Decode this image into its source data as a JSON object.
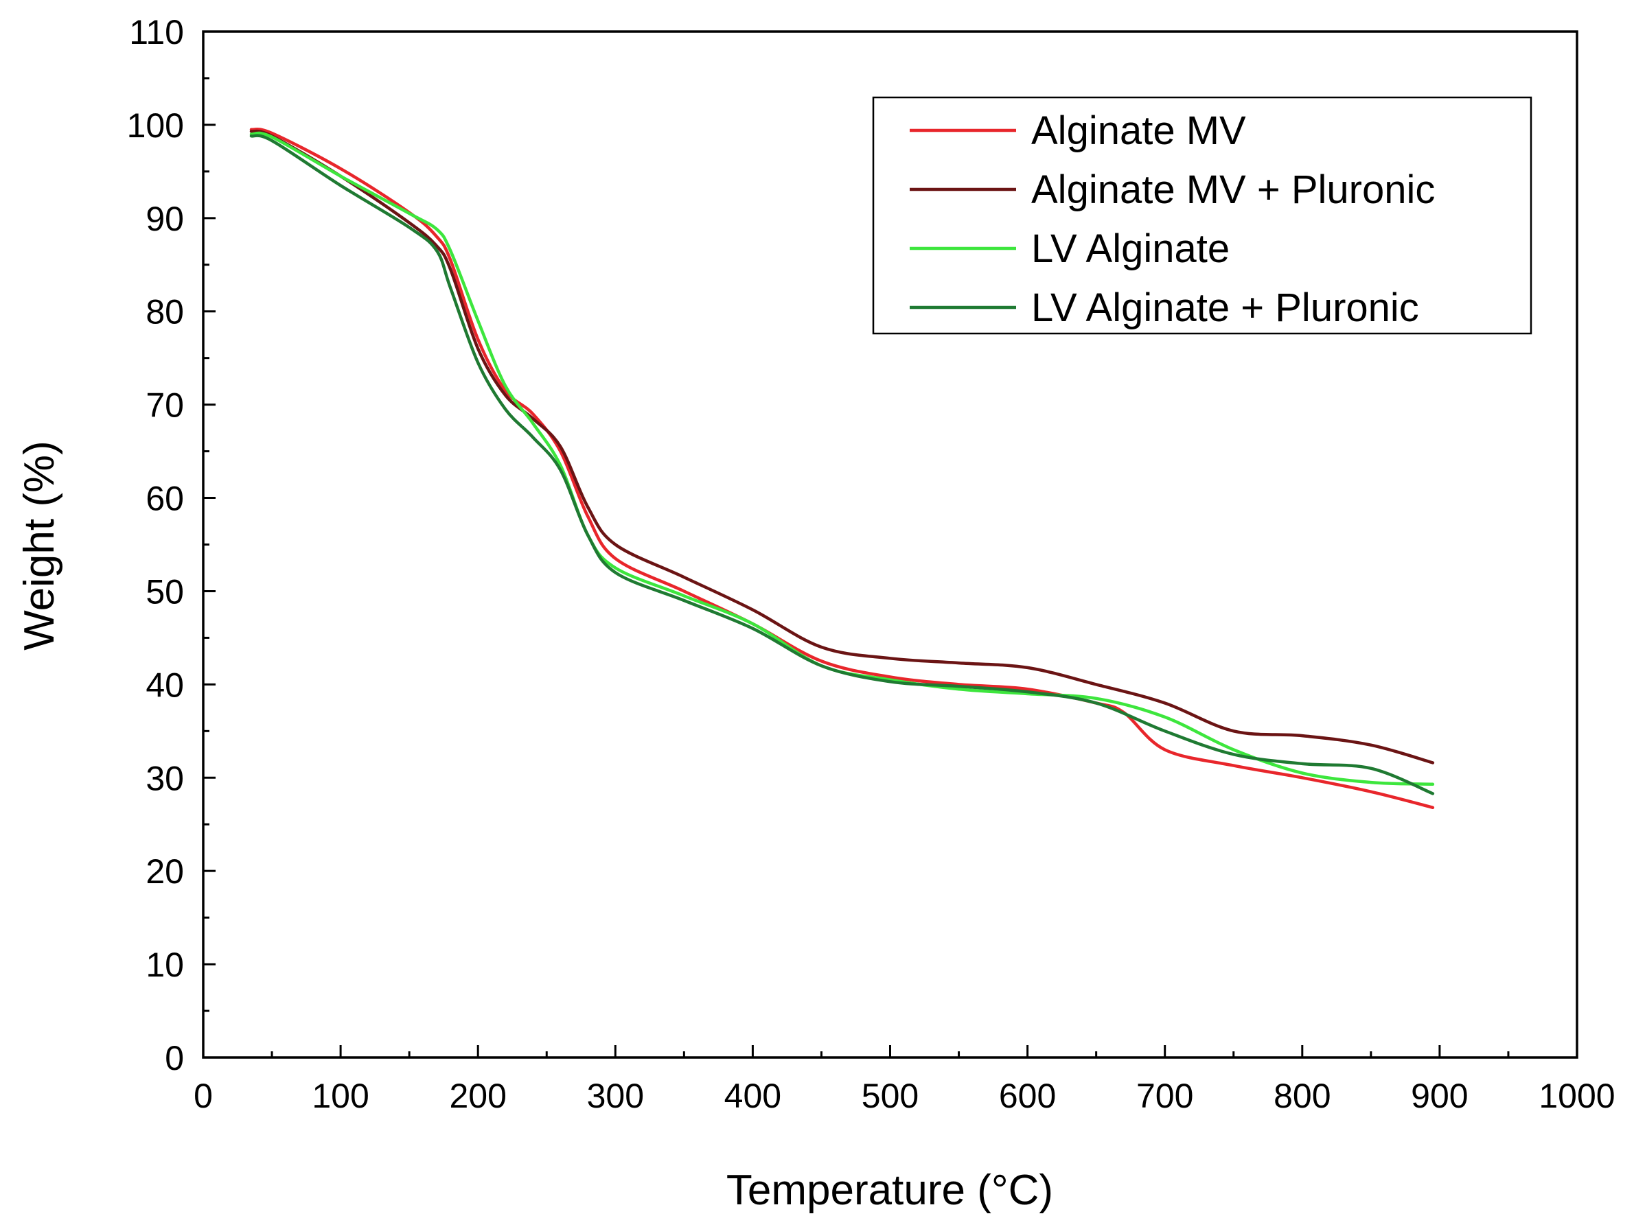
{
  "chart_data": {
    "type": "line",
    "title": "",
    "xlabel": "Temperature (°C)",
    "ylabel": "Weight (%)",
    "xlim": [
      0,
      1000
    ],
    "ylim": [
      0,
      110
    ],
    "xticks": [
      0,
      100,
      200,
      300,
      400,
      500,
      600,
      700,
      800,
      900,
      1000
    ],
    "xtick_labels": [
      "0",
      "100",
      "200",
      "300",
      "400",
      "500",
      "600",
      "700",
      "800",
      "900",
      "1000"
    ],
    "yticks": [
      0,
      10,
      20,
      30,
      40,
      50,
      60,
      70,
      80,
      90,
      100,
      110
    ],
    "ytick_labels": [
      "0",
      "10",
      "20",
      "30",
      "40",
      "50",
      "60",
      "70",
      "80",
      "90",
      "100",
      "110"
    ],
    "grid": false,
    "legend_position": "top-right",
    "series": [
      {
        "name": "Alginate MV",
        "color": "#e8262b",
        "points": [
          [
            35,
            99.5
          ],
          [
            50,
            99.1
          ],
          [
            100,
            95.3
          ],
          [
            150,
            90.6
          ],
          [
            170,
            88.0
          ],
          [
            180,
            85.5
          ],
          [
            200,
            77.0
          ],
          [
            220,
            71.5
          ],
          [
            240,
            69.0
          ],
          [
            260,
            65.0
          ],
          [
            280,
            58.0
          ],
          [
            300,
            53.5
          ],
          [
            350,
            50.0
          ],
          [
            400,
            46.5
          ],
          [
            450,
            42.5
          ],
          [
            500,
            40.8
          ],
          [
            550,
            40.0
          ],
          [
            600,
            39.5
          ],
          [
            650,
            38.0
          ],
          [
            670,
            37.0
          ],
          [
            700,
            33.0
          ],
          [
            750,
            31.3
          ],
          [
            800,
            30.0
          ],
          [
            850,
            28.5
          ],
          [
            895,
            26.8
          ]
        ]
      },
      {
        "name": "Alginate MV + Pluronic",
        "color": "#6b1414",
        "points": [
          [
            35,
            99.3
          ],
          [
            50,
            98.8
          ],
          [
            100,
            94.5
          ],
          [
            150,
            89.5
          ],
          [
            170,
            87.0
          ],
          [
            180,
            84.5
          ],
          [
            200,
            76.0
          ],
          [
            220,
            71.0
          ],
          [
            240,
            68.5
          ],
          [
            260,
            65.5
          ],
          [
            280,
            59.0
          ],
          [
            300,
            55.0
          ],
          [
            350,
            51.5
          ],
          [
            400,
            48.0
          ],
          [
            450,
            44.0
          ],
          [
            500,
            42.8
          ],
          [
            550,
            42.3
          ],
          [
            600,
            41.8
          ],
          [
            650,
            40.0
          ],
          [
            700,
            38.0
          ],
          [
            750,
            35.0
          ],
          [
            800,
            34.5
          ],
          [
            850,
            33.5
          ],
          [
            895,
            31.6
          ]
        ]
      },
      {
        "name": "LV Alginate",
        "color": "#3de63d",
        "points": [
          [
            35,
            99.0
          ],
          [
            50,
            98.7
          ],
          [
            100,
            94.5
          ],
          [
            150,
            90.5
          ],
          [
            170,
            88.8
          ],
          [
            180,
            86.5
          ],
          [
            200,
            79.0
          ],
          [
            220,
            72.0
          ],
          [
            240,
            68.0
          ],
          [
            260,
            63.5
          ],
          [
            280,
            56.0
          ],
          [
            300,
            52.5
          ],
          [
            350,
            49.5
          ],
          [
            400,
            46.5
          ],
          [
            450,
            42.0
          ],
          [
            500,
            40.5
          ],
          [
            550,
            39.5
          ],
          [
            600,
            39.0
          ],
          [
            650,
            38.5
          ],
          [
            700,
            36.5
          ],
          [
            750,
            33.0
          ],
          [
            800,
            30.5
          ],
          [
            850,
            29.5
          ],
          [
            895,
            29.3
          ]
        ]
      },
      {
        "name": "LV Alginate + Pluronic",
        "color": "#1f7a32",
        "points": [
          [
            35,
            98.8
          ],
          [
            50,
            98.3
          ],
          [
            100,
            93.5
          ],
          [
            150,
            89.0
          ],
          [
            170,
            86.5
          ],
          [
            180,
            82.5
          ],
          [
            200,
            74.5
          ],
          [
            220,
            69.5
          ],
          [
            240,
            66.5
          ],
          [
            260,
            63.0
          ],
          [
            280,
            56.0
          ],
          [
            300,
            52.0
          ],
          [
            350,
            49.0
          ],
          [
            400,
            46.0
          ],
          [
            450,
            42.0
          ],
          [
            500,
            40.3
          ],
          [
            550,
            39.8
          ],
          [
            600,
            39.2
          ],
          [
            650,
            38.0
          ],
          [
            700,
            35.0
          ],
          [
            750,
            32.5
          ],
          [
            800,
            31.5
          ],
          [
            850,
            31.0
          ],
          [
            895,
            28.3
          ]
        ]
      }
    ]
  }
}
